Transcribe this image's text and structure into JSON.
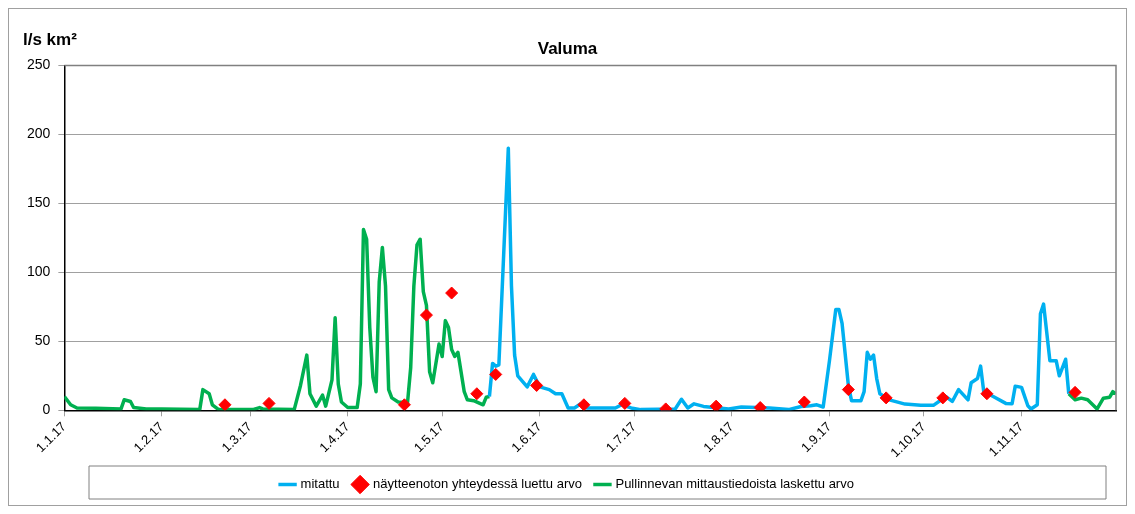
{
  "chart_data": {
    "type": "line",
    "title": "Valuma",
    "ylabel": "l/s km²",
    "xlim": [
      "2017-01-01",
      "2017-12-01"
    ],
    "xticks": [
      {
        "value": "2017-01-01",
        "label": "1.1.17"
      },
      {
        "value": "2017-02-01",
        "label": "1.2.17"
      },
      {
        "value": "2017-03-01",
        "label": "1.3.17"
      },
      {
        "value": "2017-04-01",
        "label": "1.4.17"
      },
      {
        "value": "2017-05-01",
        "label": "1.5.17"
      },
      {
        "value": "2017-06-01",
        "label": "1.6.17"
      },
      {
        "value": "2017-07-01",
        "label": "1.7.17"
      },
      {
        "value": "2017-08-01",
        "label": "1.8.17"
      },
      {
        "value": "2017-09-01",
        "label": "1.9.17"
      },
      {
        "value": "2017-10-01",
        "label": "1.10.17"
      },
      {
        "value": "2017-11-01",
        "label": "1.11.17"
      }
    ],
    "ylim": [
      0,
      250
    ],
    "yticks": [
      0,
      50,
      100,
      150,
      200,
      250
    ],
    "grid": "y",
    "legend": "bottom",
    "line_style": "solid",
    "series": [
      {
        "name": "mitattu",
        "color": "#00b0f0",
        "x": [
          "2017-05-16",
          "2017-05-17",
          "2017-05-18",
          "2017-05-19",
          "2017-05-22",
          "2017-05-23",
          "2017-05-24",
          "2017-05-25",
          "2017-05-28",
          "2017-05-30",
          "2017-06-01",
          "2017-06-04",
          "2017-06-06",
          "2017-06-08",
          "2017-06-10",
          "2017-06-12",
          "2017-06-14",
          "2017-06-16",
          "2017-06-25",
          "2017-06-27",
          "2017-06-30",
          "2017-07-03",
          "2017-07-14",
          "2017-07-16",
          "2017-07-18",
          "2017-07-20",
          "2017-07-23",
          "2017-07-31",
          "2017-08-04",
          "2017-08-13",
          "2017-08-19",
          "2017-08-23",
          "2017-08-26",
          "2017-08-28",
          "2017-08-30",
          "2017-09-01",
          "2017-09-03",
          "2017-09-04",
          "2017-09-05",
          "2017-09-07",
          "2017-09-08",
          "2017-09-11",
          "2017-09-12",
          "2017-09-13",
          "2017-09-14",
          "2017-09-15",
          "2017-09-16",
          "2017-09-17",
          "2017-09-20",
          "2017-09-25",
          "2017-09-30",
          "2017-10-04",
          "2017-10-08",
          "2017-10-10",
          "2017-10-12",
          "2017-10-15",
          "2017-10-16",
          "2017-10-18",
          "2017-10-19",
          "2017-10-20",
          "2017-10-23",
          "2017-10-27",
          "2017-10-29",
          "2017-10-30",
          "2017-11-01",
          "2017-11-03",
          "2017-11-04",
          "2017-11-06",
          "2017-11-07",
          "2017-11-08",
          "2017-11-10",
          "2017-11-12",
          "2017-11-13",
          "2017-11-15",
          "2017-11-16"
        ],
        "values": [
          10,
          34,
          32,
          33,
          190,
          90,
          40,
          25,
          17,
          26,
          17,
          15,
          12,
          12,
          1.7,
          1.7,
          4.7,
          1.7,
          1.7,
          4,
          1.7,
          0.5,
          1,
          8,
          1.7,
          4.7,
          2.8,
          1,
          2.4,
          1.7,
          0.5,
          2.8,
          3.3,
          4,
          2.4,
          36,
          73,
          73,
          63,
          18,
          7,
          7,
          13.5,
          42,
          37,
          40,
          23,
          12,
          7.6,
          4.5,
          3.6,
          3.6,
          10,
          6.4,
          15,
          7.6,
          20,
          23,
          32,
          13.5,
          10,
          5,
          4.7,
          17.5,
          16.6,
          3.3,
          1,
          4,
          70,
          77,
          36,
          36,
          25,
          37,
          12
        ]
      },
      {
        "name": "näytteenoton yhteydessä luettu arvo",
        "type": "scatter",
        "color": "#ff0000",
        "marker": "diamond",
        "x": [
          "2017-02-21",
          "2017-03-07",
          "2017-04-19",
          "2017-04-26",
          "2017-05-04",
          "2017-05-12",
          "2017-05-18",
          "2017-05-31",
          "2017-06-15",
          "2017-06-28",
          "2017-07-11",
          "2017-07-27",
          "2017-08-10",
          "2017-08-24",
          "2017-09-07",
          "2017-09-19",
          "2017-10-07",
          "2017-10-21",
          "2017-11-18"
        ],
        "values": [
          4,
          5,
          4,
          69,
          85,
          12,
          26,
          18,
          4,
          5,
          1,
          3,
          2,
          6,
          15,
          9,
          9,
          12,
          13
        ]
      },
      {
        "name": "Pullinnevan mittaustiedoista laskettu arvo",
        "color": "#00b050",
        "x": [
          "2017-01-01",
          "2017-01-03",
          "2017-01-05",
          "2017-01-11",
          "2017-01-19",
          "2017-01-20",
          "2017-01-22",
          "2017-01-23",
          "2017-01-27",
          "2017-02-01",
          "2017-02-13",
          "2017-02-14",
          "2017-02-16",
          "2017-02-17",
          "2017-02-19",
          "2017-03-02",
          "2017-03-04",
          "2017-03-05",
          "2017-03-15",
          "2017-03-17",
          "2017-03-19",
          "2017-03-20",
          "2017-03-22",
          "2017-03-24",
          "2017-03-25",
          "2017-03-27",
          "2017-03-28",
          "2017-03-29",
          "2017-03-30",
          "2017-04-01",
          "2017-04-04",
          "2017-04-05",
          "2017-04-06",
          "2017-04-07",
          "2017-04-08",
          "2017-04-09",
          "2017-04-10",
          "2017-04-11",
          "2017-04-12",
          "2017-04-13",
          "2017-04-14",
          "2017-04-15",
          "2017-04-17",
          "2017-04-20",
          "2017-04-21",
          "2017-04-22",
          "2017-04-23",
          "2017-04-24",
          "2017-04-25",
          "2017-04-26",
          "2017-04-27",
          "2017-04-28",
          "2017-04-30",
          "2017-05-01",
          "2017-05-02",
          "2017-05-03",
          "2017-05-04",
          "2017-05-05",
          "2017-05-06",
          "2017-05-08",
          "2017-05-09",
          "2017-05-11",
          "2017-05-14",
          "2017-05-15",
          "2017-05-16",
          "2017-08-01",
          "2017-11-16",
          "2017-11-18",
          "2017-11-20",
          "2017-11-22",
          "2017-11-25",
          "2017-11-27",
          "2017-11-29",
          "2017-11-30",
          "2017-12-01"
        ],
        "values": [
          10,
          4,
          1.7,
          1.4,
          1,
          7.6,
          6.4,
          2,
          1,
          1,
          0.5,
          15,
          12,
          4,
          0.5,
          0.5,
          2,
          1,
          0.5,
          18,
          40,
          12,
          3,
          11,
          3,
          22,
          67,
          19,
          6,
          2,
          2,
          19,
          131,
          124,
          60,
          24,
          13.5,
          93,
          118,
          90,
          15,
          9,
          6,
          5.7,
          31,
          90,
          120,
          124,
          86,
          76,
          28,
          20,
          48,
          39,
          65,
          60,
          44,
          39,
          42,
          13.5,
          7.6,
          7,
          4,
          9.5,
          10,
          null,
          12,
          7.6,
          8.8,
          7.6,
          1,
          8.8,
          9.5,
          13.5,
          12
        ]
      }
    ]
  }
}
